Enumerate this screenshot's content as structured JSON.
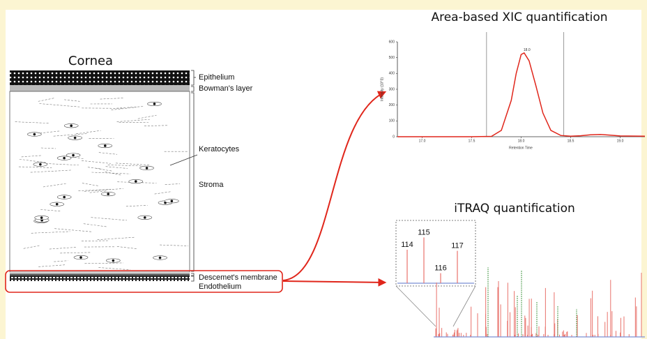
{
  "cornea": {
    "title": "Cornea",
    "layers": [
      "Epithelium",
      "Bowman's layer",
      "Keratocytes",
      "Stroma",
      "Descemet's membrane",
      "Endothelium"
    ]
  },
  "xic": {
    "title": "Area-based XIC quantification",
    "y_label": "Intensity (10^3)",
    "x_label": "Retention Time",
    "peak_label": "18.0",
    "ylim": [
      0,
      600
    ],
    "yticks": [
      0,
      100,
      200,
      300,
      400,
      500,
      600
    ],
    "xlim": [
      16.75,
      19.25
    ],
    "xticks": [
      {
        "value": 17,
        "label": "17.0"
      },
      {
        "value": 17.5,
        "label": "17.5"
      },
      {
        "value": 18,
        "label": "18.0"
      },
      {
        "value": 18.5,
        "label": "18.5"
      },
      {
        "value": 19,
        "label": "19.0"
      }
    ],
    "integration_bounds": [
      17.65,
      18.43
    ],
    "x": [
      16.75,
      17.5,
      17.7,
      17.8,
      17.9,
      17.95,
      18.0,
      18.03,
      18.08,
      18.15,
      18.22,
      18.3,
      18.4,
      18.5,
      18.6,
      18.7,
      18.8,
      18.9,
      19.0,
      19.25
    ],
    "values": [
      0,
      0,
      2,
      40,
      230,
      400,
      520,
      530,
      480,
      320,
      150,
      40,
      8,
      3,
      6,
      12,
      14,
      10,
      5,
      3
    ]
  },
  "itraq": {
    "title": "iTRAQ quantification",
    "ylim": [
      0,
      100
    ],
    "inset": {
      "labels": [
        "114",
        "115",
        "116",
        "117"
      ],
      "values": [
        60,
        82,
        18,
        58
      ]
    }
  }
}
